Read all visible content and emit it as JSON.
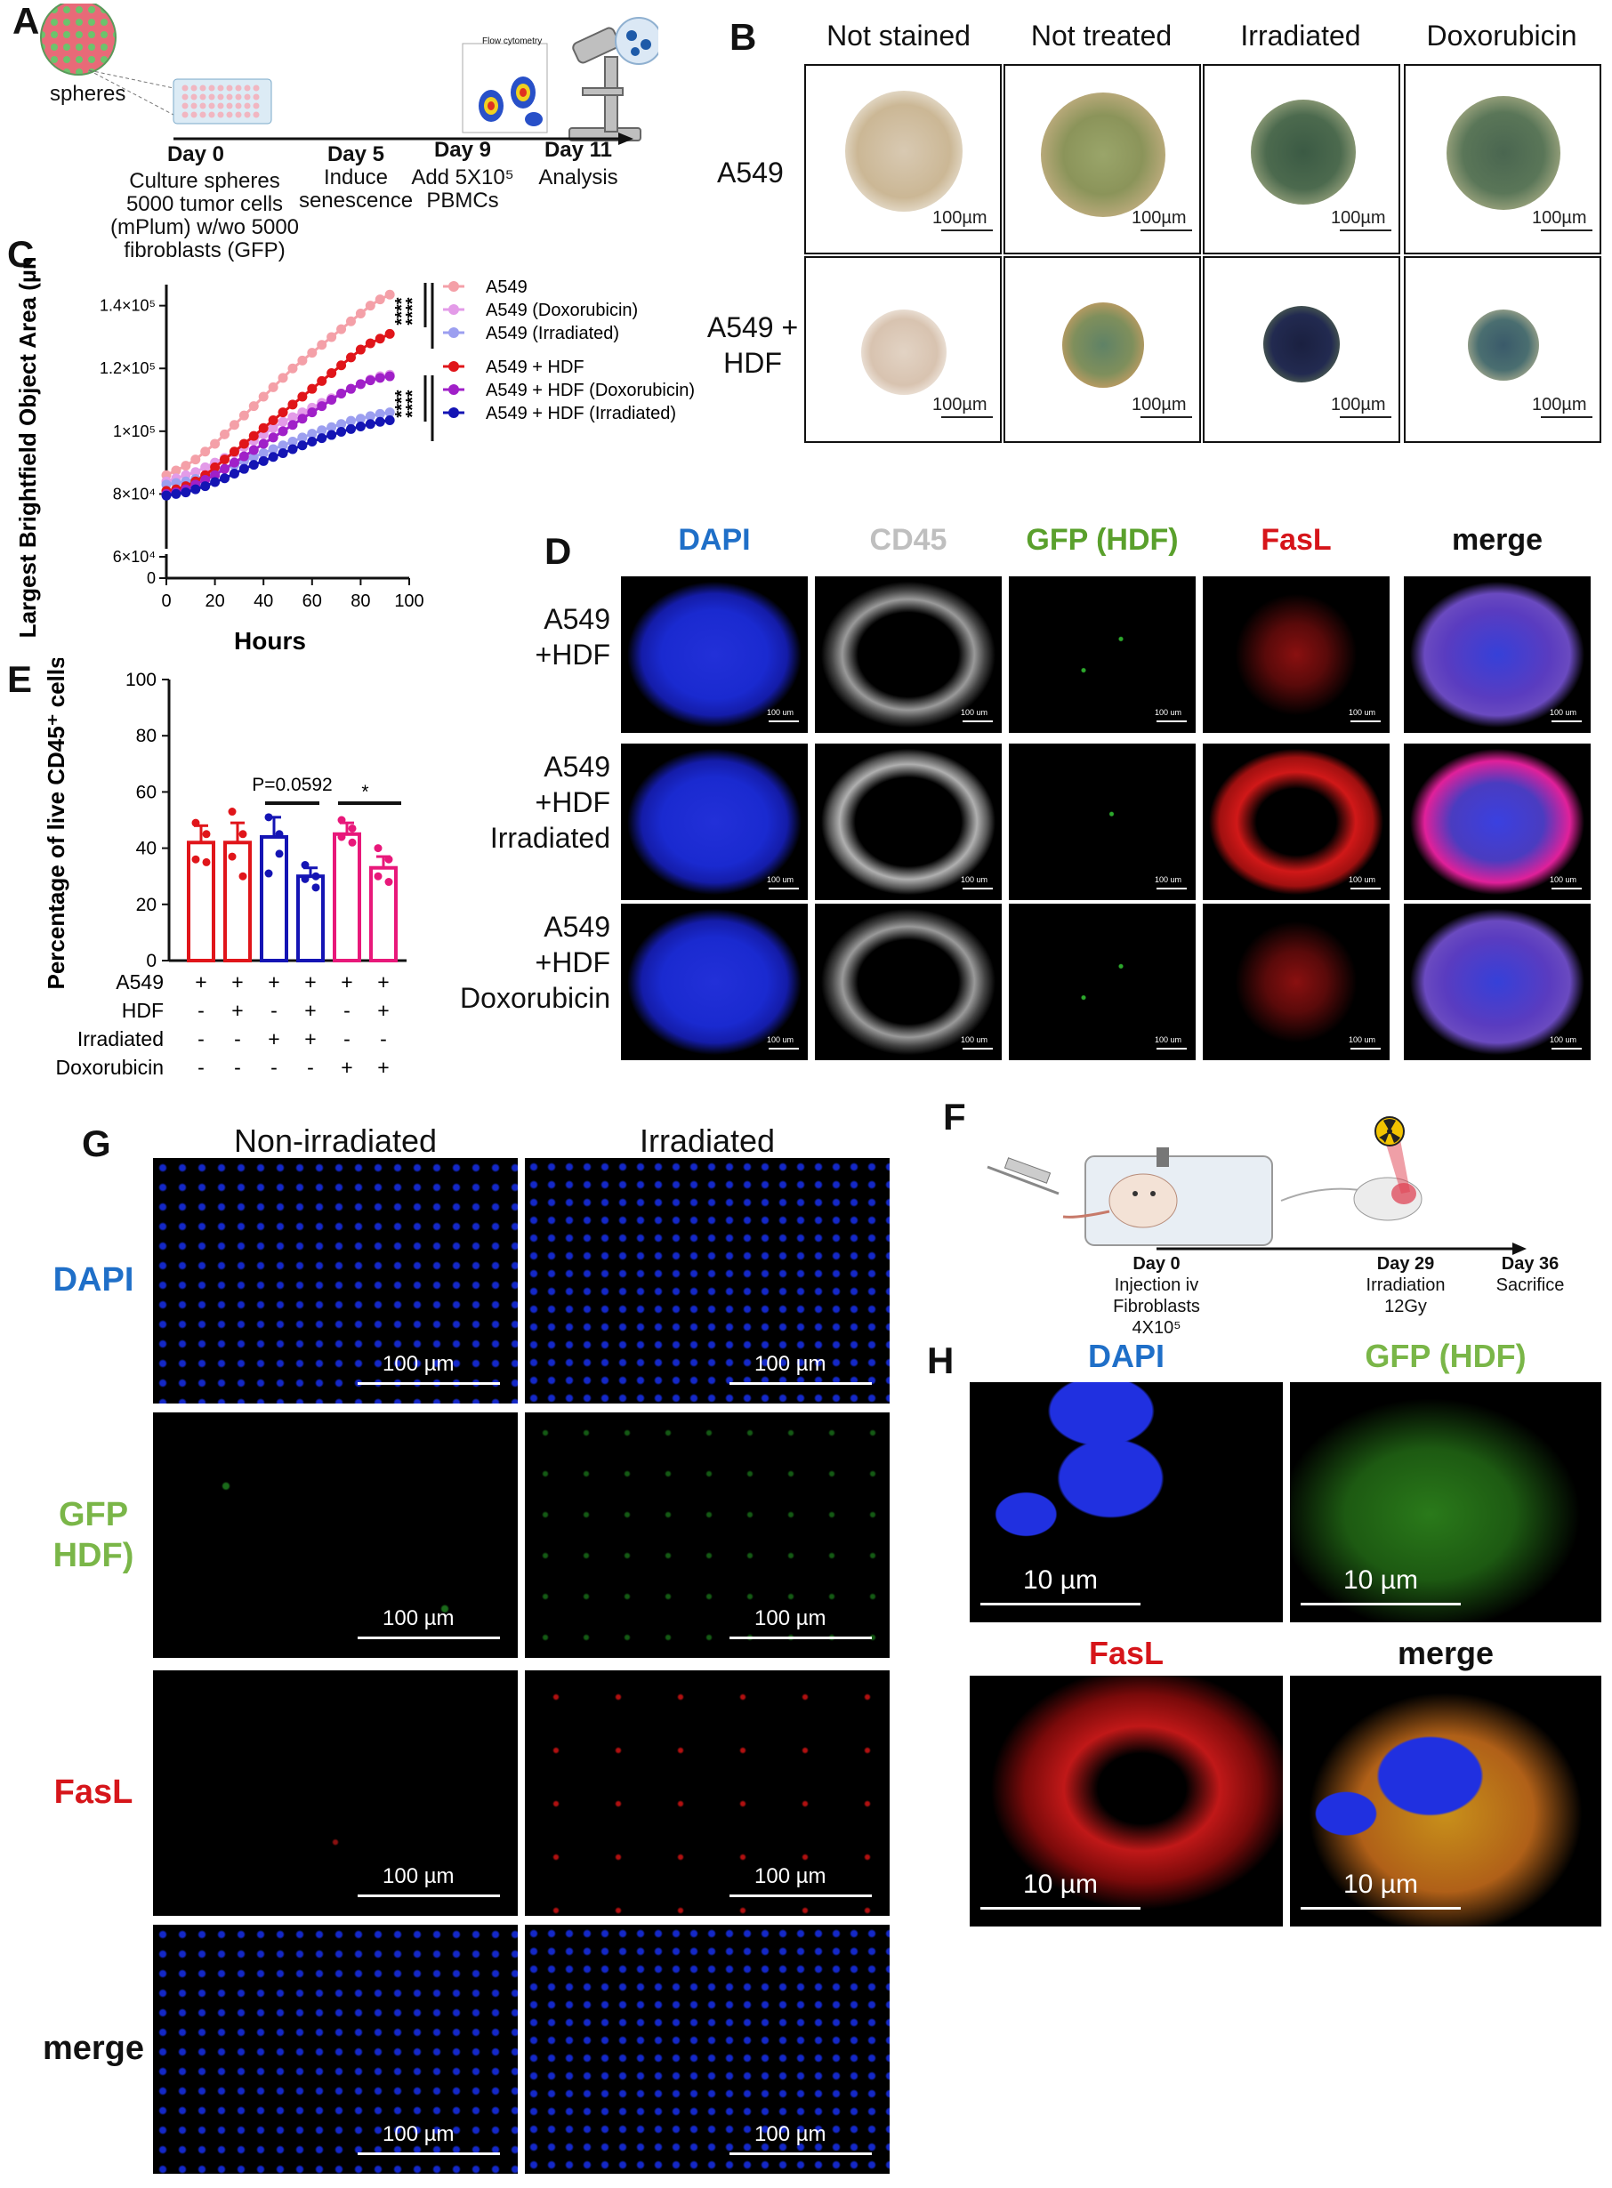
{
  "panel_letters": {
    "a": "A",
    "b": "B",
    "c": "C",
    "d": "D",
    "e": "E",
    "f": "F",
    "g": "G",
    "h": "H"
  },
  "panelA": {
    "spheres_label": "spheres",
    "timeline": [
      {
        "day": "Day 0",
        "desc": [
          "Culture  spheres",
          "5000 tumor cells",
          "(mPlum) w/wo 5000",
          "fibroblasts (GFP)"
        ]
      },
      {
        "day": "Day 5",
        "desc": [
          "Induce",
          "senescence"
        ]
      },
      {
        "day": "Day 9",
        "desc": [
          "Add 5X10⁵",
          "PBMCs"
        ]
      },
      {
        "day": "Day 11",
        "desc": [
          "Analysis"
        ]
      }
    ],
    "flow_label": "Flow cytometry"
  },
  "panelB": {
    "columns": [
      "Not stained",
      "Not treated",
      "Irradiated",
      "Doxorubicin"
    ],
    "rows": [
      "A549",
      "A549 +",
      "HDF"
    ],
    "scale": "100µm"
  },
  "chart_data": [
    {
      "type": "line",
      "panel": "C",
      "xlabel": "Hours",
      "ylabel": "Largest Brightfield Object Area (µm²)",
      "xticks": [
        "0",
        "20",
        "40",
        "60",
        "80",
        "100"
      ],
      "yticks": [
        "0",
        "6×10⁴",
        "8×10⁴",
        "1×10⁵",
        "1.2×10⁵",
        "1.4×10⁵"
      ],
      "xlim": [
        0,
        100
      ],
      "ylim": [
        0,
        145000
      ],
      "x": [
        0,
        4,
        8,
        12,
        16,
        20,
        24,
        28,
        32,
        36,
        40,
        44,
        48,
        52,
        56,
        60,
        64,
        68,
        72,
        76,
        80,
        84,
        88,
        92
      ],
      "series": [
        {
          "name": "A549",
          "color": "#f4a0a8",
          "values": [
            86000,
            87500,
            89000,
            91000,
            93500,
            96000,
            99000,
            102000,
            105000,
            108000,
            111000,
            114000,
            117000,
            120000,
            122500,
            125000,
            127500,
            130000,
            132500,
            135000,
            137500,
            140000,
            142000,
            143500
          ]
        },
        {
          "name": "A549 (Doxorubicin)",
          "color": "#e39be8",
          "values": [
            84000,
            85000,
            86000,
            87000,
            88500,
            90000,
            91500,
            93000,
            95000,
            97000,
            99000,
            101000,
            103000,
            104500,
            106000,
            107500,
            109000,
            110500,
            112000,
            113500,
            115000,
            116500,
            117500,
            118000
          ]
        },
        {
          "name": "A549 (Irradiated)",
          "color": "#9c9ff0",
          "values": [
            83000,
            83500,
            84000,
            84800,
            85800,
            86800,
            88000,
            89200,
            90500,
            91800,
            93000,
            94300,
            95500,
            96700,
            98000,
            99200,
            100300,
            101300,
            102300,
            103300,
            104000,
            104800,
            105500,
            106000
          ]
        },
        {
          "name": "A549 + HDF",
          "color": "#e0151a",
          "values": [
            81000,
            81500,
            82500,
            84000,
            86000,
            88500,
            91000,
            93500,
            96000,
            98500,
            101000,
            103500,
            106000,
            108500,
            111000,
            113500,
            116000,
            118500,
            121000,
            123500,
            126000,
            128000,
            129500,
            131000
          ]
        },
        {
          "name": "A549 + HDF (Doxorubicin)",
          "color": "#a020c8",
          "values": [
            80000,
            80500,
            81500,
            83000,
            84500,
            86000,
            88000,
            90000,
            92000,
            94000,
            96000,
            98000,
            100000,
            102000,
            104000,
            106000,
            108000,
            110000,
            112000,
            113500,
            115000,
            116200,
            117000,
            117500
          ]
        },
        {
          "name": "A549 + HDF (Irradiated)",
          "color": "#1414b4",
          "values": [
            79500,
            80000,
            80500,
            81500,
            82500,
            83800,
            85000,
            86500,
            88000,
            89300,
            90500,
            91800,
            93000,
            94300,
            95500,
            96700,
            97800,
            98800,
            99800,
            100700,
            101500,
            102300,
            103000,
            103500
          ]
        }
      ],
      "significance": [
        "****",
        "****",
        "****",
        "****"
      ]
    },
    {
      "type": "bar",
      "panel": "E",
      "ylabel": "Percentage of live CD45⁺ cells",
      "yticks": [
        "0",
        "20",
        "40",
        "60",
        "80",
        "100"
      ],
      "ylim": [
        0,
        100
      ],
      "values": [
        42,
        42,
        44,
        30,
        45,
        33
      ],
      "errors": [
        6,
        7,
        7,
        3,
        4,
        4
      ],
      "colors": [
        "#e0151a",
        "#e0151a",
        "#1414b4",
        "#1414b4",
        "#e8187a",
        "#e8187a"
      ],
      "points": [
        [
          49,
          45,
          36,
          35
        ],
        [
          53,
          45,
          37,
          30
        ],
        [
          51,
          45,
          31,
          38
        ],
        [
          34,
          30,
          29,
          26
        ],
        [
          50,
          47,
          44,
          42
        ],
        [
          40,
          36,
          30,
          28
        ]
      ],
      "point_colors": [
        "#e0151a",
        "#e0151a",
        "#1414b4",
        "#1414b4",
        "#e8187a",
        "#e8187a"
      ],
      "annotations": [
        {
          "text": "P=0.0592",
          "between": [
            3,
            4
          ]
        },
        {
          "text": "*",
          "between": [
            5,
            6
          ]
        }
      ],
      "condition_table": {
        "rows": [
          "A549",
          "HDF",
          "Irradiated",
          "Doxorubicin"
        ],
        "values": [
          [
            "+",
            "+",
            "+",
            "+",
            "+",
            "+"
          ],
          [
            "-",
            "+",
            "-",
            "+",
            "-",
            "+"
          ],
          [
            "-",
            "-",
            "+",
            "+",
            "-",
            "-"
          ],
          [
            "-",
            "-",
            "-",
            "-",
            "+",
            "+"
          ]
        ]
      }
    }
  ],
  "panelD": {
    "columns": [
      {
        "label": "DAPI",
        "color": "#1f6fc8"
      },
      {
        "label": "CD45",
        "color": "#bfbfbf"
      },
      {
        "label": "GFP (HDF)",
        "color": "#5aa02c"
      },
      {
        "label": "FasL",
        "color": "#d6151a"
      },
      {
        "label": "merge",
        "color": "#111111"
      }
    ],
    "rows": [
      {
        "lines": [
          "A549",
          "+HDF"
        ]
      },
      {
        "lines": [
          "A549",
          "+HDF",
          "Irradiated"
        ]
      },
      {
        "lines": [
          "A549",
          "+HDF",
          "Doxorubicin"
        ]
      }
    ],
    "scale": "100 um"
  },
  "panelF": {
    "timeline": [
      {
        "day": "Day 0",
        "desc": [
          "Injection iv",
          "Fibroblasts",
          "4X10⁵"
        ]
      },
      {
        "day": "Day 29",
        "desc": [
          "Irradiation",
          "12Gy"
        ]
      },
      {
        "day": "Day 36",
        "desc": [
          "Sacrifice"
        ]
      }
    ]
  },
  "panelG": {
    "columns": [
      "Non-irradiated",
      "Irradiated"
    ],
    "rows": [
      {
        "lines": [
          "DAPI"
        ],
        "color": "#1f6fc8"
      },
      {
        "lines": [
          "GFP",
          "HDF)"
        ],
        "color": "#7ab648"
      },
      {
        "lines": [
          "FasL"
        ],
        "color": "#d6151a"
      },
      {
        "lines": [
          "merge"
        ],
        "color": "#111111"
      }
    ],
    "scale": "100 µm"
  },
  "panelH": {
    "labels": [
      {
        "text": "DAPI",
        "color": "#1f6fc8"
      },
      {
        "text": "GFP (HDF)",
        "color": "#7ab648"
      },
      {
        "text": "FasL",
        "color": "#d6151a"
      },
      {
        "text": "merge",
        "color": "#111111"
      }
    ],
    "scale": "10 µm"
  }
}
